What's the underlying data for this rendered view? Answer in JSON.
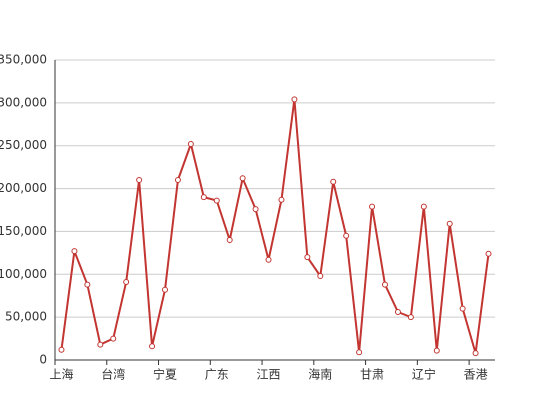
{
  "chart_data": {
    "type": "line",
    "categories": [
      "上海",
      null,
      null,
      null,
      "台湾",
      null,
      null,
      null,
      "宁夏",
      null,
      null,
      null,
      "广东",
      null,
      null,
      null,
      "江西",
      null,
      null,
      null,
      "海南",
      null,
      null,
      null,
      "甘肃",
      null,
      null,
      null,
      "辽宁",
      null,
      null,
      null,
      "香港",
      null
    ],
    "series": [
      {
        "color": "#c23531",
        "values": [
          12000,
          127000,
          88000,
          18000,
          25000,
          91000,
          210000,
          16000,
          82000,
          210000,
          252000,
          190000,
          186000,
          140000,
          212000,
          176000,
          117000,
          187000,
          304000,
          120000,
          98000,
          208000,
          145000,
          9000,
          179000,
          88000,
          56000,
          50000,
          179000,
          11000,
          159000,
          60000,
          8000,
          124000
        ]
      }
    ],
    "ylim": [
      0,
      350000
    ],
    "yticks": [
      0,
      {
        "value": 50000,
        "label": "50,000"
      },
      {
        "value": 100000,
        "label": "100,000"
      },
      {
        "value": 150000,
        "label": "150,000"
      },
      {
        "value": 200000,
        "label": "200,000"
      },
      {
        "value": 250000,
        "label": "250,000"
      },
      {
        "value": 300000,
        "label": "300,000"
      },
      {
        "value": 350000,
        "label": "350,000"
      }
    ],
    "grid": true
  }
}
